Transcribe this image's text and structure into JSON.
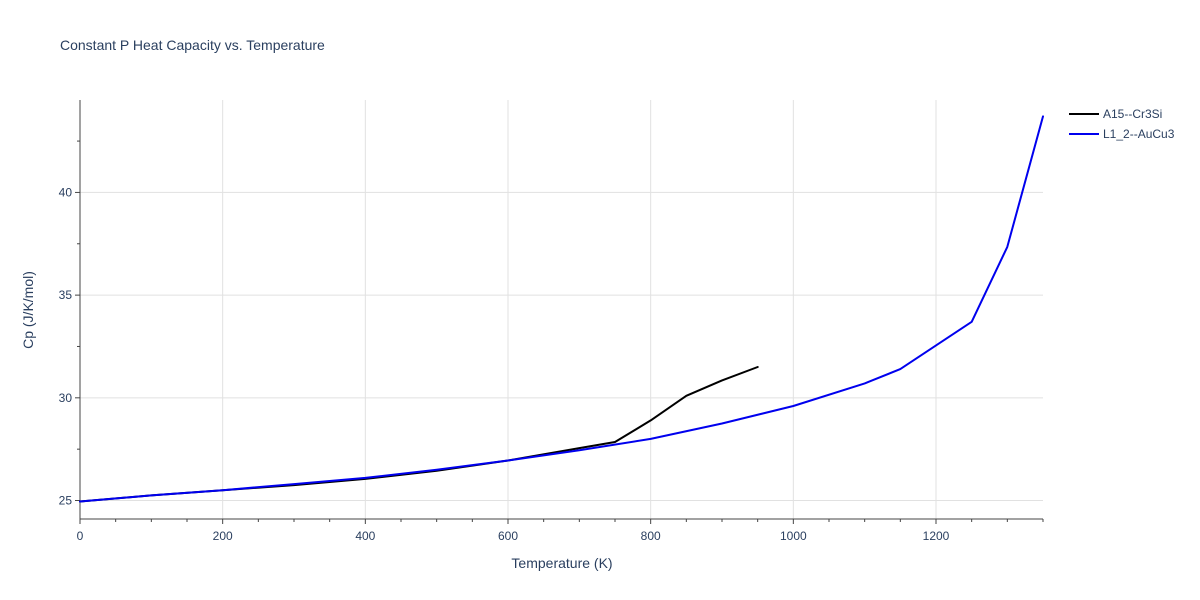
{
  "chart_data": {
    "type": "line",
    "title": "Constant P Heat Capacity vs. Temperature",
    "xlabel": "Temperature (K)",
    "ylabel": "Cp (J/K/mol)",
    "xlim": [
      0,
      1350
    ],
    "ylim": [
      24.1,
      44.5
    ],
    "xticks": [
      0,
      200,
      400,
      600,
      800,
      1000,
      1200
    ],
    "yticks": [
      25,
      30,
      35,
      40
    ],
    "grid": true,
    "legend_position": "top-right",
    "series": [
      {
        "name": "A15--Cr3Si",
        "color": "#000000",
        "x": [
          0,
          100,
          200,
          300,
          400,
          500,
          600,
          700,
          750,
          800,
          850,
          900,
          950
        ],
        "y": [
          24.95,
          25.25,
          25.5,
          25.75,
          26.05,
          26.45,
          26.95,
          27.55,
          27.85,
          28.9,
          30.1,
          30.85,
          31.5
        ]
      },
      {
        "name": "L1_2--AuCu3",
        "color": "#0000ee",
        "x": [
          0,
          100,
          200,
          300,
          400,
          500,
          600,
          700,
          800,
          900,
          1000,
          1100,
          1150,
          1200,
          1250,
          1300,
          1350
        ],
        "y": [
          24.95,
          25.25,
          25.5,
          25.8,
          26.1,
          26.5,
          26.95,
          27.45,
          28.0,
          28.75,
          29.6,
          30.7,
          31.4,
          32.55,
          33.7,
          37.35,
          43.7
        ]
      }
    ]
  }
}
